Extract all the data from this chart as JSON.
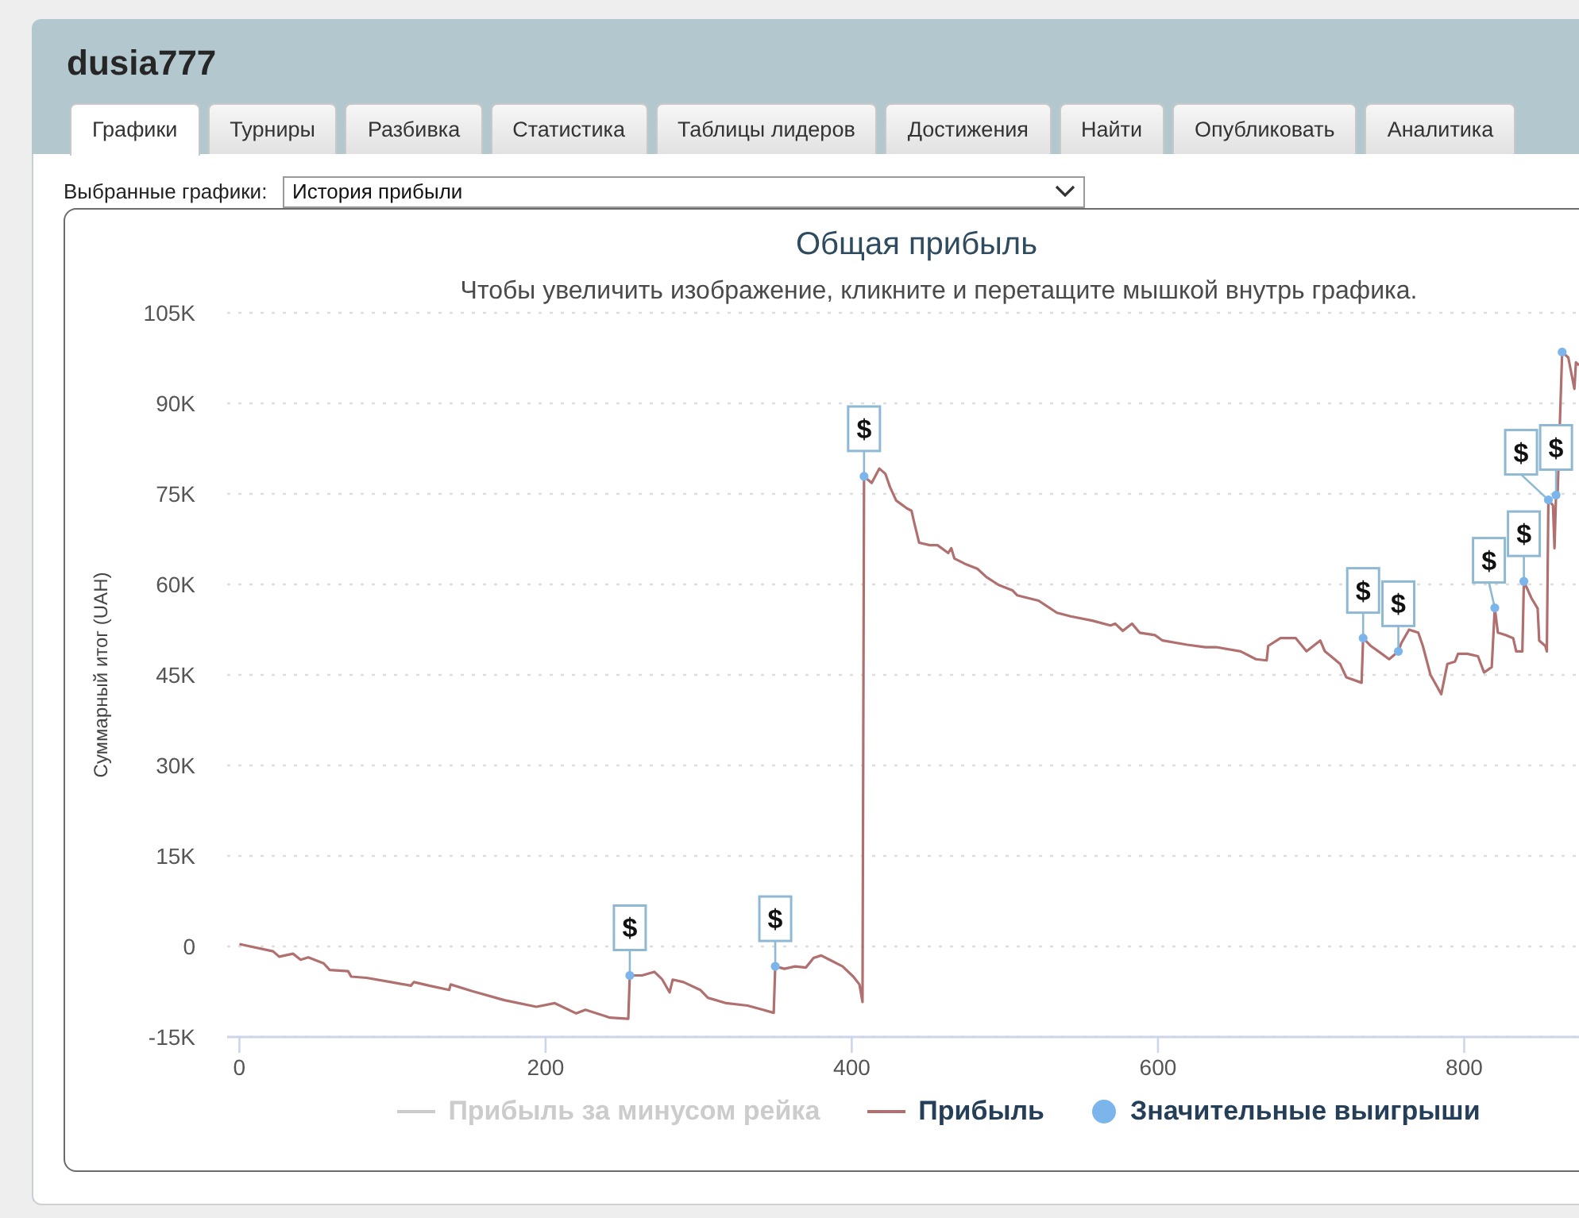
{
  "chart_data": {
    "type": "line",
    "title": "Общая прибыль",
    "subtitle": "Чтобы увеличить изображение, кликните и перетащите мышкой внутрь графика.",
    "ylabel": "Суммарный итог (UAH)",
    "annotations": [
      "dusia777",
      "Графики",
      "Турниры",
      "Разбивка",
      "Статистика",
      "Таблицы лидеров",
      "Достижения",
      "Найти",
      "Опубликовать",
      "Аналитика",
      "Выбранные графики:",
      "История прибыли"
    ],
    "xlim": [
      -8,
      875
    ],
    "xticks": [
      0,
      200,
      400,
      600,
      800
    ],
    "ylim": [
      -15000,
      105000
    ],
    "yticks": [
      {
        "value": -15000,
        "label": "-15K"
      },
      0,
      {
        "value": 15000,
        "label": "15K"
      },
      {
        "value": 30000,
        "label": "30K"
      },
      {
        "value": 45000,
        "label": "45K"
      },
      {
        "value": 60000,
        "label": "60K"
      },
      {
        "value": 75000,
        "label": "75K"
      },
      {
        "value": 90000,
        "label": "90K"
      },
      {
        "value": 105000,
        "label": "105K"
      }
    ],
    "grid": "y",
    "legend": "bottom",
    "series": [
      {
        "name": "Прибыль за минусом рейка",
        "color": "#cccccc"
      },
      {
        "name": "Прибыль",
        "color": "#b0706f",
        "x": [
          0,
          22,
          26,
          35,
          40,
          45,
          55,
          59,
          71,
          73,
          83,
          99,
          112,
          114,
          124,
          137,
          138,
          152,
          173,
          194,
          206,
          220,
          226,
          242,
          254,
          255,
          263,
          271,
          276,
          281,
          283,
          290,
          301,
          306,
          318,
          332,
          342,
          349,
          350,
          356,
          363,
          370,
          375,
          380,
          387,
          394,
          401,
          405,
          407,
          408,
          413,
          418,
          422,
          425,
          429,
          436,
          439,
          441,
          444,
          451,
          456,
          463,
          465,
          467,
          474,
          482,
          488,
          496,
          505,
          508,
          522,
          534,
          543,
          557,
          569,
          572,
          577,
          583,
          588,
          598,
          603,
          619,
          631,
          638,
          654,
          664,
          671,
          672,
          680,
          690,
          697,
          706,
          709,
          713,
          719,
          723,
          733,
          734,
          739,
          744,
          751,
          757,
          759,
          764,
          770,
          773,
          778,
          782,
          785,
          789,
          794,
          796,
          802,
          809,
          813,
          818,
          820,
          822,
          827,
          832,
          834,
          838,
          839,
          844,
          848,
          849,
          853,
          854,
          855,
          858,
          859,
          860,
          861,
          864,
          868,
          872,
          873,
          875
        ],
        "values": [
          400,
          -800,
          -1700,
          -1200,
          -2200,
          -1800,
          -2800,
          -3900,
          -4100,
          -5000,
          -5200,
          -5900,
          -6500,
          -5900,
          -6500,
          -7200,
          -6300,
          -7400,
          -8900,
          -10000,
          -9400,
          -11100,
          -10500,
          -11800,
          -12000,
          -4800,
          -4800,
          -4200,
          -5400,
          -7600,
          -5500,
          -5900,
          -7200,
          -8500,
          -9400,
          -9800,
          -10500,
          -11000,
          -3300,
          -3700,
          -3300,
          -3500,
          -1900,
          -1500,
          -2400,
          -3300,
          -5000,
          -6300,
          -9200,
          77900,
          76800,
          79200,
          78300,
          76100,
          73900,
          72600,
          72200,
          70000,
          66900,
          66500,
          66500,
          65200,
          66000,
          64300,
          63400,
          62600,
          61200,
          59900,
          59000,
          58200,
          57300,
          55300,
          54700,
          54000,
          53200,
          53500,
          52300,
          53500,
          52000,
          51600,
          50700,
          50000,
          49600,
          49600,
          48900,
          47600,
          47400,
          49800,
          51100,
          51100,
          48900,
          50700,
          48900,
          48100,
          46800,
          44600,
          43700,
          51100,
          49800,
          48900,
          47600,
          48900,
          50300,
          52500,
          52000,
          49800,
          45000,
          43200,
          41800,
          46800,
          47200,
          48500,
          48500,
          48100,
          45400,
          46300,
          56100,
          52000,
          51600,
          51100,
          48900,
          48900,
          60500,
          57700,
          56000,
          50700,
          49800,
          48900,
          74000,
          73100,
          66000,
          74800,
          74800,
          98500,
          97600,
          92400,
          96800,
          96300
        ]
      },
      {
        "name": "Значительные выигрыши",
        "type": "scatter",
        "color": "#7cb5ec",
        "marker": "circle",
        "x": [
          255,
          350,
          408,
          734,
          757,
          820,
          839,
          855,
          860,
          864
        ],
        "values": [
          -4800,
          -3300,
          77900,
          51100,
          48900,
          56100,
          60500,
          74000,
          74800,
          98500
        ],
        "value_labels": [
          "$",
          "$",
          "$",
          "$",
          "$",
          "$",
          "$",
          "$",
          "$",
          null
        ]
      }
    ]
  }
}
